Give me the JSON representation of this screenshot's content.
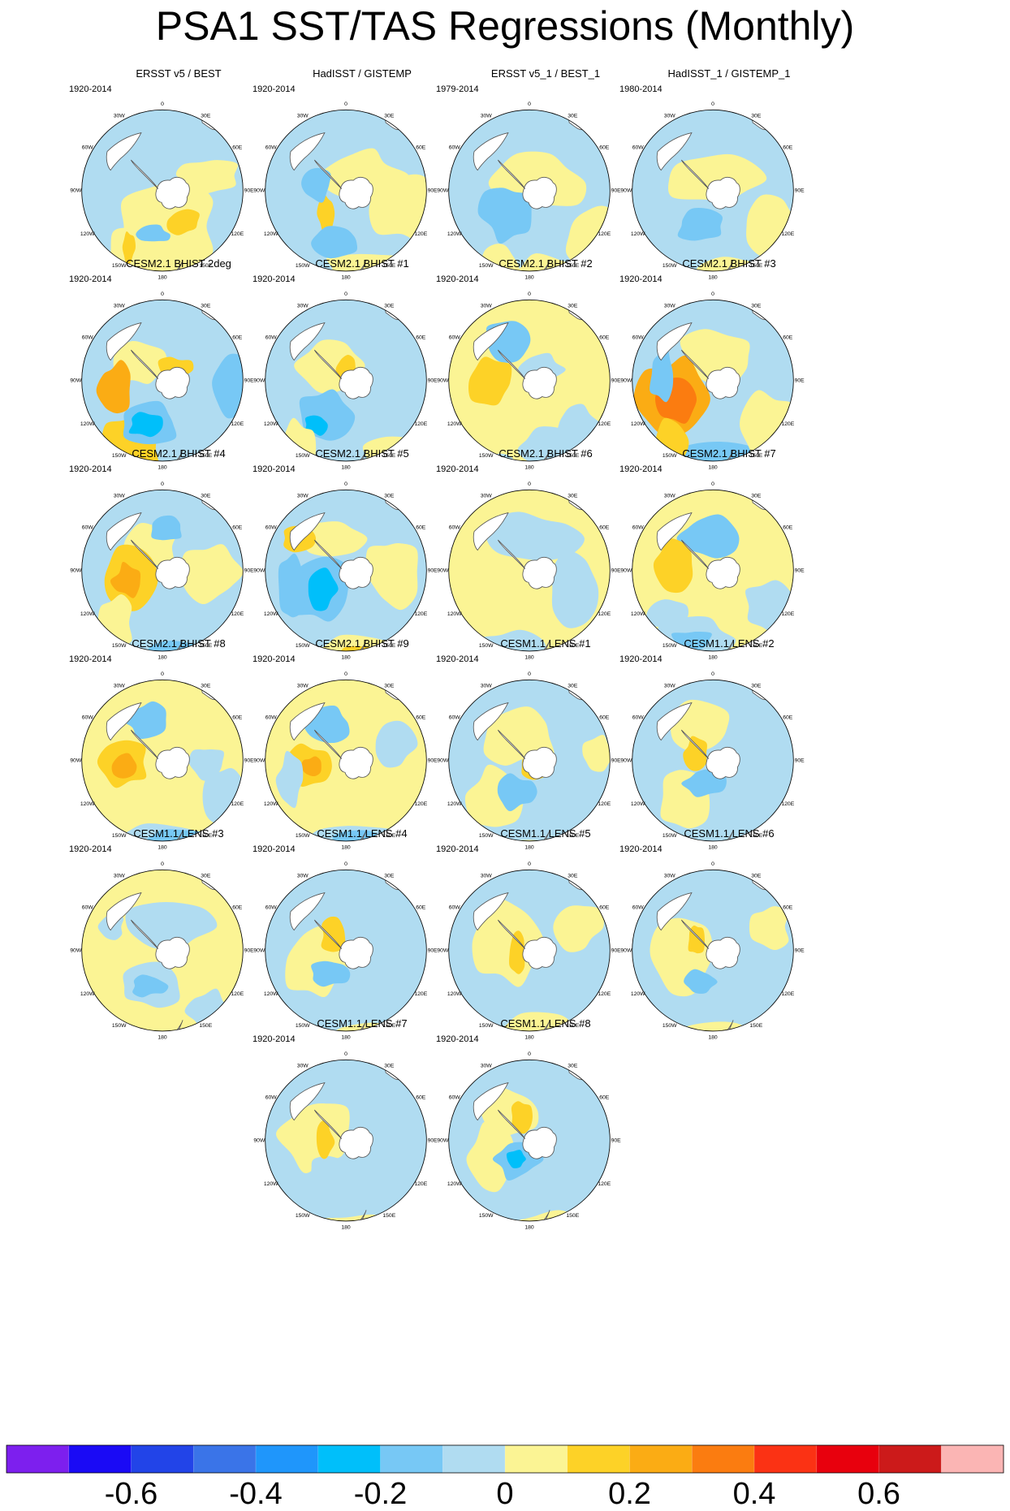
{
  "title": "PSA1 SST/TAS Regressions (Monthly)",
  "colors": {
    "scale": [
      "#7d1fee",
      "#1a0af5",
      "#2244e8",
      "#3a74e8",
      "#1f96fb",
      "#00bffa",
      "#77c8f5",
      "#b0dcf1",
      "#fbf494",
      "#fdd227",
      "#fbac14",
      "#fb7c10",
      "#fb3214",
      "#e8000d",
      "#cc1a1a",
      "#fbb5b4"
    ],
    "land": "#ffffff",
    "coast": "#555555"
  },
  "lon_labels": [
    "0",
    "30E",
    "60E",
    "90E",
    "120E",
    "150E",
    "180",
    "150W",
    "120W",
    "90W",
    "60W",
    "30W"
  ],
  "panels": [
    {
      "title": "ERSST v5 / BEST",
      "period": "1920-2014"
    },
    {
      "title": "HadISST / GISTEMP",
      "period": "1920-2014"
    },
    {
      "title": "ERSST v5_1 / BEST_1",
      "period": "1979-2014"
    },
    {
      "title": "HadISST_1 / GISTEMP_1",
      "period": "1980-2014"
    },
    {
      "title": "CESM2.1 BHIST 2deg",
      "period": "1920-2014"
    },
    {
      "title": "CESM2.1 BHIST #1",
      "period": "1920-2014"
    },
    {
      "title": "CESM2.1 BHIST #2",
      "period": "1920-2014"
    },
    {
      "title": "CESM2.1 BHIST #3",
      "period": "1920-2014"
    },
    {
      "title": "CESM2.1 BHIST #4",
      "period": "1920-2014"
    },
    {
      "title": "CESM2.1 BHIST #5",
      "period": "1920-2014"
    },
    {
      "title": "CESM2.1 BHIST #6",
      "period": "1920-2014"
    },
    {
      "title": "CESM2.1 BHIST #7",
      "period": "1920-2014"
    },
    {
      "title": "CESM2.1 BHIST #8",
      "period": "1920-2014"
    },
    {
      "title": "CESM2.1 BHIST #9",
      "period": "1920-2014"
    },
    {
      "title": "CESM1.1 LENS #1",
      "period": "1920-2014"
    },
    {
      "title": "CESM1.1 LENS #2",
      "period": "1920-2014"
    },
    {
      "title": "CESM1.1 LENS #3",
      "period": "1920-2014"
    },
    {
      "title": "CESM1.1 LENS #4",
      "period": "1920-2014"
    },
    {
      "title": "CESM1.1 LENS #5",
      "period": "1920-2014"
    },
    {
      "title": "CESM1.1 LENS #6",
      "period": "1920-2014"
    },
    {
      "title": "CESM1.1 LENS #7",
      "period": "1920-2014"
    },
    {
      "title": "CESM1.1 LENS #8",
      "period": "1920-2014"
    }
  ],
  "colorbar": {
    "labels": [
      "-0.6",
      "-0.4",
      "-0.2",
      "0",
      "0.2",
      "0.4",
      "0.6"
    ]
  }
}
